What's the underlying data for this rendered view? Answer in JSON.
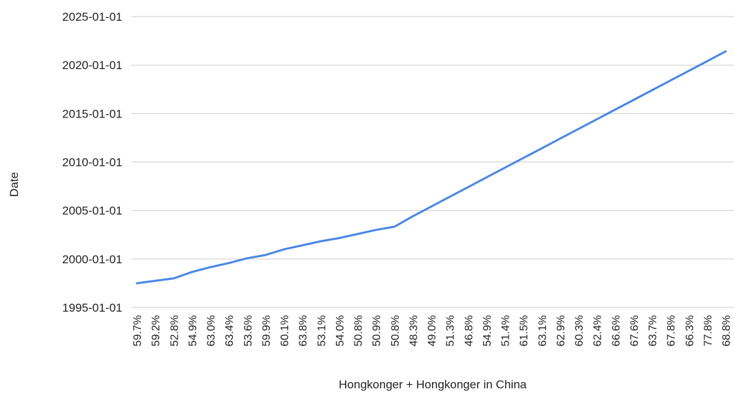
{
  "chart_data": {
    "type": "line",
    "title": "",
    "xlabel": "Hongkonger + Hongkonger in China",
    "ylabel": "Date",
    "y_is_date": true,
    "yticks": [
      "1995-01-01",
      "2000-01-01",
      "2005-01-01",
      "2010-01-01",
      "2015-01-01",
      "2020-01-01",
      "2025-01-01"
    ],
    "ylim": [
      "1995-01-01",
      "2025-01-01"
    ],
    "grid": true,
    "legend": "none",
    "series_color": "#4a86e8",
    "grid_color": "#cccccc",
    "categories": [
      "59.7%",
      "59.2%",
      "52.8%",
      "54.9%",
      "63.0%",
      "63.4%",
      "53.6%",
      "59.9%",
      "60.1%",
      "63.8%",
      "53.1%",
      "54.0%",
      "50.8%",
      "50.9%",
      "50.8%",
      "48.3%",
      "49.0%",
      "51.3%",
      "46.8%",
      "54.9%",
      "51.4%",
      "61.5%",
      "63.1%",
      "62.9%",
      "60.3%",
      "62.4%",
      "66.6%",
      "67.6%",
      "63.7%",
      "67.8%",
      "66.3%",
      "77.8%",
      "68.8%"
    ],
    "series": [
      {
        "values": [
          "1997-07-01",
          "1997-10-01",
          "1998-01-01",
          "1998-09-01",
          "1999-03-01",
          "1999-08-01",
          "2000-02-01",
          "2000-06-01",
          "2001-01-01",
          "2001-06-01",
          "2001-11-01",
          "2002-03-01",
          "2002-08-01",
          "2003-01-01",
          "2003-05-01",
          "2004-06-01",
          "2005-06-01",
          "2006-06-01",
          "2007-06-01",
          "2008-06-01",
          "2009-06-01",
          "2010-06-01",
          "2011-06-01",
          "2012-06-01",
          "2013-06-01",
          "2014-06-01",
          "2015-06-01",
          "2016-06-01",
          "2017-06-01",
          "2018-06-01",
          "2019-06-01",
          "2020-06-01",
          "2021-06-01"
        ]
      }
    ]
  }
}
